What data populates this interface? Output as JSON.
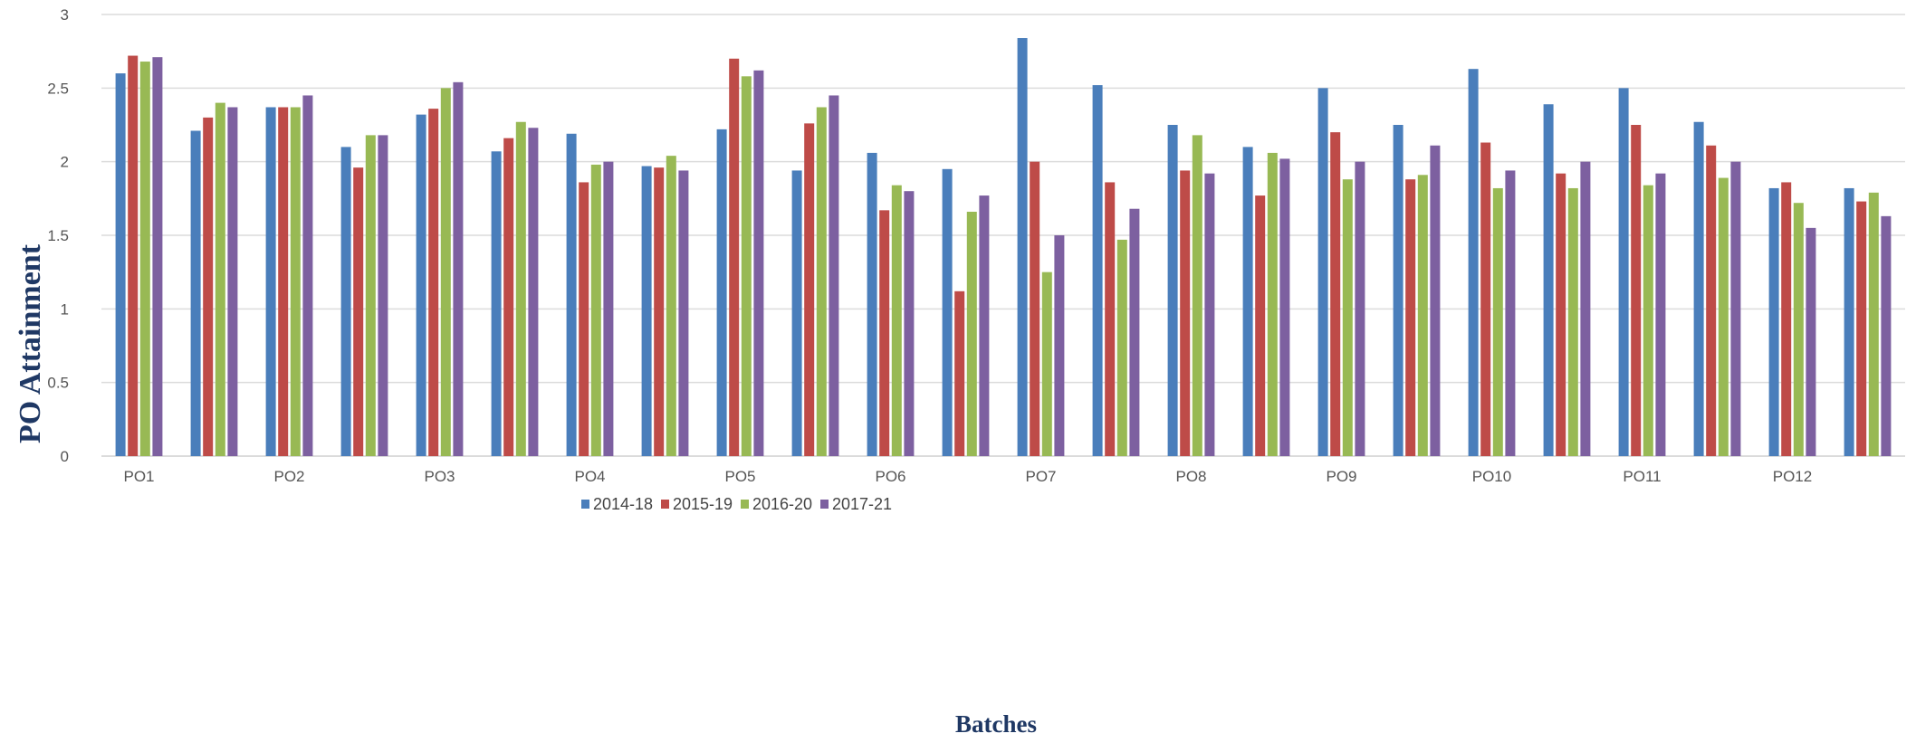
{
  "chart_data": {
    "type": "bar",
    "xlabel": "Batches",
    "ylabel": "PO Attainment",
    "ylim": [
      0,
      3
    ],
    "yticks": [
      0,
      0.5,
      1,
      1.5,
      2,
      2.5,
      3
    ],
    "grid": true,
    "legend_position": "bottom",
    "categories": [
      "PO1",
      "",
      "PO2",
      "",
      "PO3",
      "",
      "PO4",
      "",
      "PO5",
      "",
      "PO6",
      "",
      "PO7",
      "",
      "PO8",
      "",
      "PO9",
      "",
      "PO10",
      "",
      "PO11",
      "",
      "PO12",
      ""
    ],
    "series": [
      {
        "name": "2014-18",
        "color": "#4a7ebb",
        "values": [
          2.6,
          2.21,
          2.37,
          2.1,
          2.32,
          2.07,
          2.19,
          1.97,
          2.22,
          1.94,
          2.06,
          1.95,
          2.84,
          2.52,
          2.25,
          2.1,
          2.5,
          2.25,
          2.63,
          2.39,
          2.5,
          2.27,
          1.82,
          1.82
        ]
      },
      {
        "name": "2015-19",
        "color": "#be4b48",
        "values": [
          2.72,
          2.3,
          2.37,
          1.96,
          2.36,
          2.16,
          1.86,
          1.96,
          2.7,
          2.26,
          1.67,
          1.12,
          2.0,
          1.86,
          1.94,
          1.77,
          2.2,
          1.88,
          2.13,
          1.92,
          2.25,
          2.11,
          1.86,
          1.73
        ]
      },
      {
        "name": "2016-20",
        "color": "#98b954",
        "values": [
          2.68,
          2.4,
          2.37,
          2.18,
          2.5,
          2.27,
          1.98,
          2.04,
          2.58,
          2.37,
          1.84,
          1.66,
          1.25,
          1.47,
          2.18,
          2.06,
          1.88,
          1.91,
          1.82,
          1.82,
          1.84,
          1.89,
          1.72,
          1.79
        ]
      },
      {
        "name": "2017-21",
        "color": "#7d60a0",
        "values": [
          2.71,
          2.37,
          2.45,
          2.18,
          2.54,
          2.23,
          2.0,
          1.94,
          2.62,
          2.45,
          1.8,
          1.77,
          1.5,
          1.68,
          1.92,
          2.02,
          2.0,
          2.11,
          1.94,
          2.0,
          1.92,
          2.0,
          1.55,
          1.63
        ]
      }
    ]
  }
}
